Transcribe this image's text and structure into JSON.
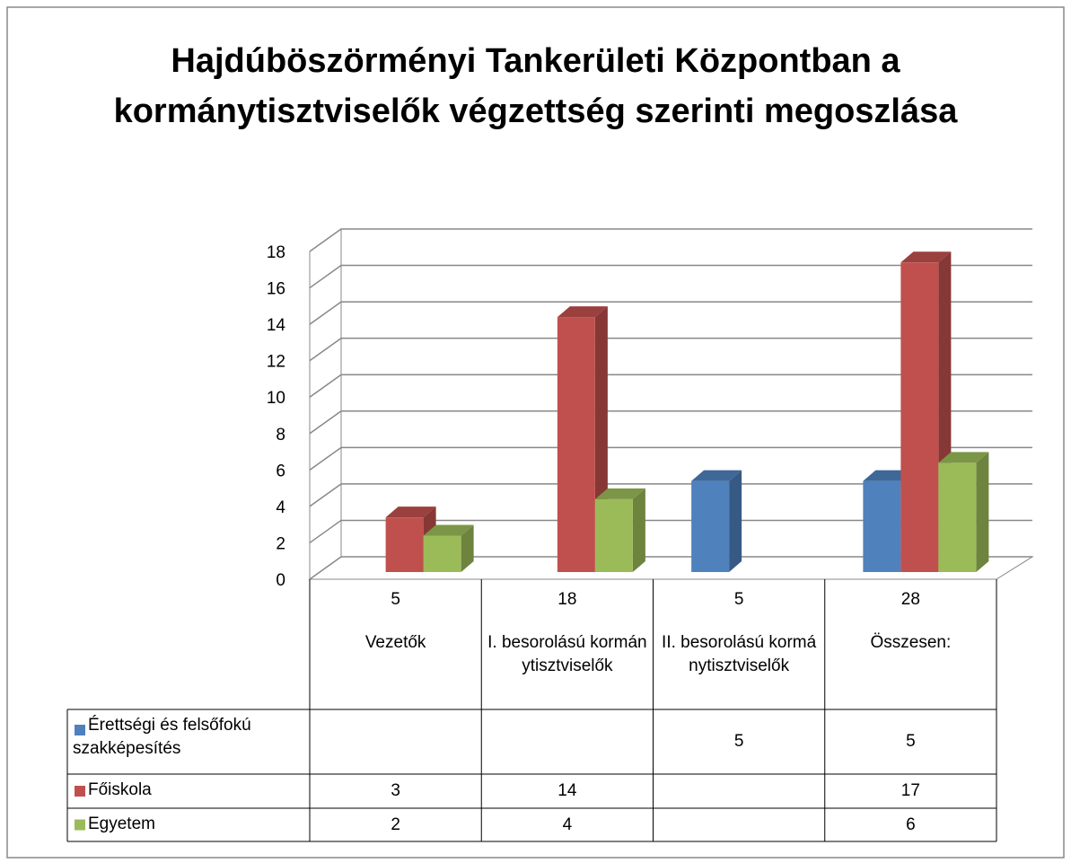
{
  "chart_data": {
    "type": "bar3d",
    "title": "Hajdúböszörményi Tankerületi Központban a kormánytisztviselők végzettség szerinti megoszlása",
    "categories": [
      "Vezetők",
      "I. besorolású kormánytisztviselők",
      "II. besorolású kormánytisztviselők",
      "Összesen:"
    ],
    "category_counts": [
      5,
      18,
      5,
      28
    ],
    "series": [
      {
        "name": "Érettségi és felsőfokú szakképesítés",
        "color": "#4f81bd",
        "values": [
          null,
          null,
          5,
          5
        ]
      },
      {
        "name": "Főiskola",
        "color": "#c0504d",
        "values": [
          3,
          14,
          null,
          17
        ]
      },
      {
        "name": "Egyetem",
        "color": "#9bbb59",
        "values": [
          2,
          4,
          null,
          6
        ]
      }
    ],
    "ylim": [
      0,
      18
    ],
    "yticks": [
      0,
      2,
      4,
      6,
      8,
      10,
      12,
      14,
      16,
      18
    ],
    "grid": true,
    "data_table": true
  }
}
